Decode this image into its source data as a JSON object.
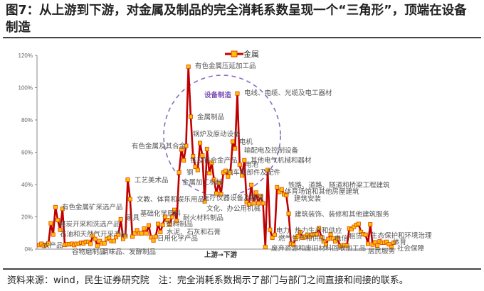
{
  "title": "图7：从上游到下游，对金属及制品的完全消耗系数呈现一个“三角形”，顶端在设备制造",
  "footer": "资料来源：wind，民生证券研究院　注：完全消耗系数揭示了部门与部门之间直接和间接的联系。",
  "colors": {
    "line": "#c00000",
    "marker_fill": "#ffc000",
    "marker_edge": "#e04000",
    "circle": "#8a6cc0"
  },
  "chart_data": {
    "type": "line",
    "ylim": [
      0,
      120
    ],
    "yticks": [
      "0%",
      "20%",
      "40%",
      "60%",
      "80%",
      "100%",
      "120%"
    ],
    "grid": false,
    "legend_placement": "top-right",
    "series": [
      {
        "name": "金属",
        "values": [
          2.5,
          3.3,
          2,
          2.6,
          3.6,
          16,
          9,
          26,
          18,
          12,
          25,
          2.6,
          3,
          3,
          3.3,
          2.5,
          3.3,
          3.3,
          4,
          3.6,
          4.5,
          4.5,
          3.3,
          8.3,
          6.3,
          2,
          5,
          3.6,
          3.6,
          6.3,
          7,
          5,
          5,
          7.4,
          9,
          18.5,
          6.3,
          8,
          43,
          31,
          7.7,
          9.8,
          11.7,
          9.8,
          9.8,
          12.7,
          9.8,
          14.7,
          7.3,
          5.4,
          7.7,
          15.6,
          10.6,
          15,
          20,
          18,
          15.3,
          20,
          24.3,
          17.5,
          47.5,
          61.7,
          55,
          64,
          113,
          82,
          57.5,
          51,
          49,
          65.7,
          58,
          29.6,
          62,
          47,
          53.5,
          43,
          34.5,
          41,
          34,
          47.4,
          48.5,
          45,
          47.4,
          66.6,
          62.3,
          96.4,
          52.3,
          45.6,
          55,
          29,
          27.7,
          39.7,
          28.4,
          35,
          28.4,
          33,
          28.4,
          1.3,
          49,
          12,
          7,
          8.9,
          38.3,
          35.4,
          37,
          34,
          33.4,
          22,
          3.3,
          2.8,
          6.6,
          8,
          10.6,
          7,
          7.7,
          8.9,
          7.7,
          8.9,
          9.2,
          9.2,
          13,
          7.4,
          4.8,
          2.8,
          6.3,
          9.2,
          6.6,
          4.8,
          6.6,
          1.9,
          2.2,
          2.5,
          2.2,
          12.7,
          12.4,
          13.8,
          15,
          15.6,
          10.6,
          9.2,
          8.9,
          3.3,
          15.3,
          2.8,
          4.2,
          2.2,
          4.8,
          4,
          4,
          4.5,
          3,
          1.3,
          4
        ]
      }
    ],
    "annotations": [
      "有色金属压延加工品",
      "设备制造",
      "电线、电缆、光缆及电工器材",
      "金属制品",
      "锅炉及原动设备",
      "电机",
      "输配电及控制设备",
      "有色金属及其合金",
      "铁及铁合金产品",
      "其他电气机械和器材",
      "电池",
      "汽车零部件及配件",
      "钢",
      "金属加工机械",
      "医疗仪器设备及器械",
      "文化、办公用机械",
      "工艺美术品",
      "文教、体育和娱乐用品",
      "有色金属矿采选产品",
      "基础化学原料",
      "家具",
      "耐火材料制品",
      "煤炭开采和洗选产品",
      "塑料制品",
      "水泥、石灰和石膏",
      "石油和天然气开采产品",
      "日用化学产品",
      "农产品",
      "谷物磨制品",
      "调味品、发酵制品",
      "上游→下游",
      "铁路、道路、隧道和桥梁工程建筑",
      "体育场馆和其他房屋建筑",
      "建筑安装",
      "建筑装饰、装修和其他建筑服务",
      "电力",
      "热力生产和供应",
      "燃气生产和供应",
      "电信",
      "废弃资源和废旧材料回收加工品",
      "租赁",
      "生态保护和环境治理",
      "体育",
      "居民服务",
      "社会保障"
    ]
  }
}
